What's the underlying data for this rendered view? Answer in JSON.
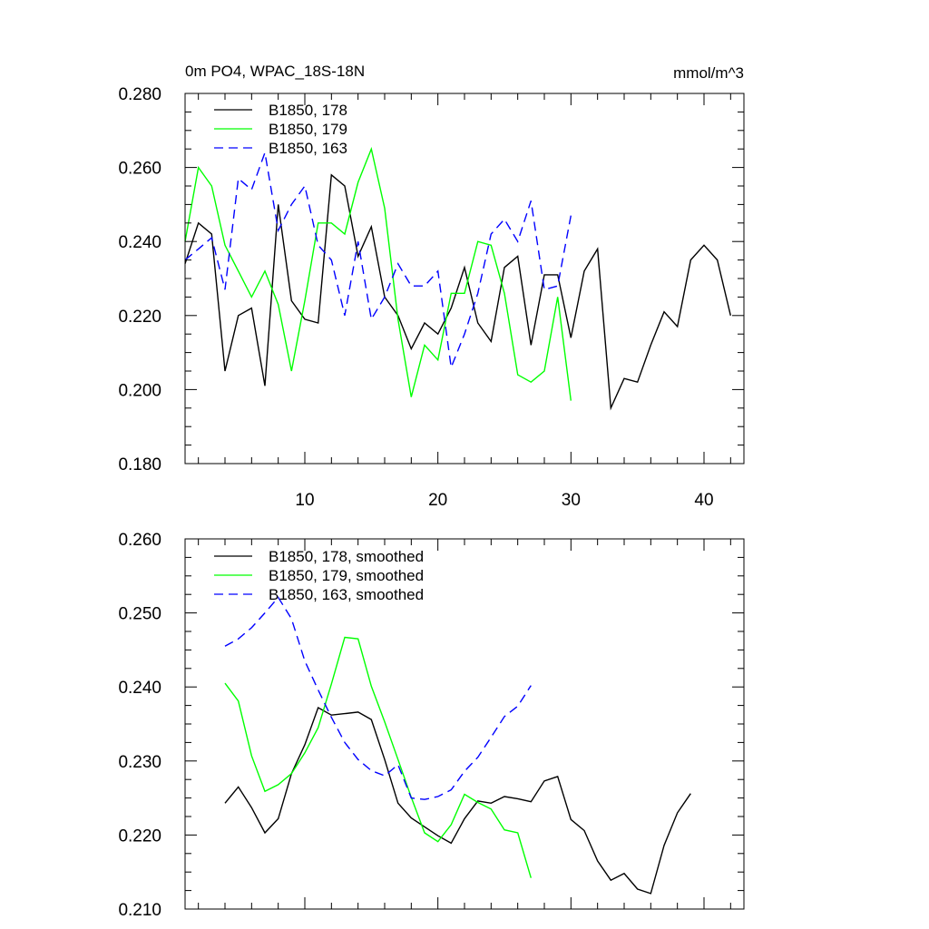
{
  "chart_data": [
    {
      "type": "line",
      "title_left": "0m PO4, WPAC_18S-18N",
      "title_right": "mmol/m^3",
      "xlim": [
        1,
        43
      ],
      "ylim": [
        0.18,
        0.28
      ],
      "xticks": [
        10,
        20,
        30,
        40
      ],
      "xtick_labels": [
        "10",
        "20",
        "30",
        "40"
      ],
      "yticks": [
        0.18,
        0.2,
        0.22,
        0.24,
        0.26,
        0.28
      ],
      "ytick_labels": [
        "0.180",
        "0.200",
        "0.220",
        "0.240",
        "0.260",
        "0.280"
      ],
      "legend_position": "top-left",
      "series": [
        {
          "name": "B1850, 178",
          "color": "#000000",
          "dash": "solid",
          "x": [
            1,
            2,
            3,
            4,
            5,
            6,
            7,
            8,
            9,
            10,
            11,
            12,
            13,
            14,
            15,
            16,
            17,
            18,
            19,
            20,
            21,
            22,
            23,
            24,
            25,
            26,
            27,
            28,
            29,
            30,
            31,
            32,
            33,
            34,
            35,
            36,
            37,
            38,
            39,
            40,
            41,
            42
          ],
          "values": [
            0.234,
            0.245,
            0.242,
            0.205,
            0.22,
            0.222,
            0.201,
            0.25,
            0.224,
            0.219,
            0.218,
            0.258,
            0.255,
            0.236,
            0.244,
            0.225,
            0.22,
            0.211,
            0.218,
            0.215,
            0.222,
            0.233,
            0.218,
            0.213,
            0.233,
            0.236,
            0.212,
            0.231,
            0.231,
            0.214,
            0.232,
            0.238,
            0.195,
            0.203,
            0.202,
            0.212,
            0.221,
            0.217,
            0.235,
            0.239,
            0.235,
            0.22
          ]
        },
        {
          "name": "B1850, 179",
          "color": "#00ff00",
          "dash": "solid",
          "x": [
            1,
            2,
            3,
            4,
            5,
            6,
            7,
            8,
            9,
            10,
            11,
            12,
            13,
            14,
            15,
            16,
            17,
            18,
            19,
            20,
            21,
            22,
            23,
            24,
            25,
            26,
            27,
            28,
            29,
            30
          ],
          "values": [
            0.24,
            0.26,
            0.255,
            0.239,
            0.232,
            0.225,
            0.232,
            0.223,
            0.205,
            0.224,
            0.245,
            0.245,
            0.242,
            0.256,
            0.265,
            0.249,
            0.219,
            0.198,
            0.212,
            0.208,
            0.226,
            0.226,
            0.24,
            0.239,
            0.226,
            0.204,
            0.202,
            0.205,
            0.225,
            0.197
          ]
        },
        {
          "name": "B1850, 163",
          "color": "#0000ff",
          "dash": "dashed",
          "x": [
            1,
            2,
            3,
            4,
            5,
            6,
            7,
            8,
            9,
            10,
            11,
            12,
            13,
            14,
            15,
            16,
            17,
            18,
            19,
            20,
            21,
            22,
            23,
            24,
            25,
            26,
            27,
            28,
            29,
            30
          ],
          "values": [
            0.235,
            0.238,
            0.241,
            0.227,
            0.257,
            0.254,
            0.264,
            0.243,
            0.25,
            0.255,
            0.239,
            0.235,
            0.22,
            0.24,
            0.219,
            0.225,
            0.234,
            0.228,
            0.228,
            0.232,
            0.206,
            0.215,
            0.226,
            0.242,
            0.246,
            0.24,
            0.251,
            0.227,
            0.228,
            0.247
          ]
        }
      ]
    },
    {
      "type": "line",
      "xlim": [
        1,
        43
      ],
      "ylim": [
        0.21,
        0.26
      ],
      "xticks": [
        10,
        20,
        30,
        40
      ],
      "yticks": [
        0.21,
        0.22,
        0.23,
        0.24,
        0.25,
        0.26
      ],
      "ytick_labels": [
        "0.210",
        "0.220",
        "0.230",
        "0.240",
        "0.250",
        "0.260"
      ],
      "legend_position": "top-left",
      "series": [
        {
          "name": "B1850, 178, smoothed",
          "color": "#000000",
          "dash": "solid",
          "x": [
            4,
            5,
            6,
            7,
            8,
            9,
            10,
            11,
            12,
            13,
            14,
            15,
            16,
            17,
            18,
            19,
            20,
            21,
            22,
            23,
            24,
            25,
            26,
            27,
            28,
            29,
            30,
            31,
            32,
            33,
            34,
            35,
            36,
            37,
            38,
            39
          ],
          "values": [
            0.2243,
            0.2265,
            0.2237,
            0.2203,
            0.2222,
            0.2283,
            0.2322,
            0.2372,
            0.2362,
            0.2364,
            0.2366,
            0.2356,
            0.2302,
            0.2243,
            0.2223,
            0.2211,
            0.2199,
            0.2189,
            0.2222,
            0.2246,
            0.2243,
            0.2252,
            0.2249,
            0.2245,
            0.2273,
            0.2279,
            0.2221,
            0.2206,
            0.2165,
            0.2139,
            0.2148,
            0.2127,
            0.2121,
            0.2186,
            0.223,
            0.2256
          ]
        },
        {
          "name": "B1850, 179, smoothed",
          "color": "#00ff00",
          "dash": "solid",
          "x": [
            4,
            5,
            6,
            7,
            8,
            9,
            10,
            11,
            12,
            13,
            14,
            15,
            16,
            17,
            18,
            19,
            20,
            21,
            22,
            23,
            24,
            25,
            26,
            27
          ],
          "values": [
            0.2405,
            0.2381,
            0.2307,
            0.2259,
            0.2268,
            0.2283,
            0.2311,
            0.2345,
            0.2404,
            0.2467,
            0.2465,
            0.2401,
            0.2353,
            0.2302,
            0.2251,
            0.2203,
            0.2191,
            0.2214,
            0.2255,
            0.2244,
            0.2235,
            0.2207,
            0.2203,
            0.2142
          ]
        },
        {
          "name": "B1850, 163, smoothed",
          "color": "#0000ff",
          "dash": "dashed",
          "x": [
            4,
            5,
            6,
            7,
            8,
            9,
            10,
            11,
            12,
            13,
            14,
            15,
            16,
            17,
            18,
            19,
            20,
            21,
            22,
            23,
            24,
            25,
            26,
            27
          ],
          "values": [
            0.2455,
            0.2465,
            0.248,
            0.25,
            0.2521,
            0.2492,
            0.2435,
            0.2396,
            0.2359,
            0.2325,
            0.2302,
            0.2287,
            0.228,
            0.2295,
            0.225,
            0.2248,
            0.2252,
            0.2261,
            0.2286,
            0.2305,
            0.2332,
            0.236,
            0.2374,
            0.2402
          ]
        }
      ]
    }
  ]
}
